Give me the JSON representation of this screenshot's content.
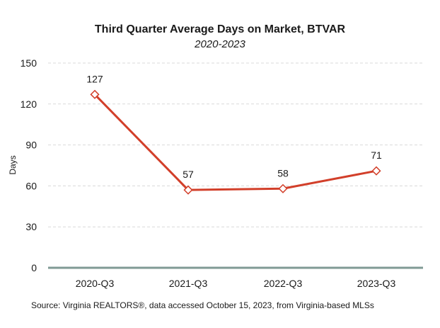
{
  "chart_data": {
    "type": "line",
    "title": "Third Quarter Average Days on Market, BTVAR",
    "subtitle": "2020-2023",
    "ylabel": "Days",
    "xlabel": "",
    "categories": [
      "2020-Q3",
      "2021-Q3",
      "2022-Q3",
      "2023-Q3"
    ],
    "series": [
      {
        "values": [
          127,
          57,
          58,
          71
        ]
      }
    ],
    "ylim": [
      0,
      150
    ],
    "yticks": [
      0,
      30,
      60,
      90,
      120,
      150
    ],
    "grid": true,
    "data_labels": true,
    "colors": {
      "line": "#d23f2a",
      "marker_fill": "#ffffff",
      "grid": "#d9d9d9",
      "axis": "#7f9a94"
    }
  },
  "source": "Source: Virginia REALTORS®, data accessed October 15, 2023, from Virginia-based MLSs"
}
